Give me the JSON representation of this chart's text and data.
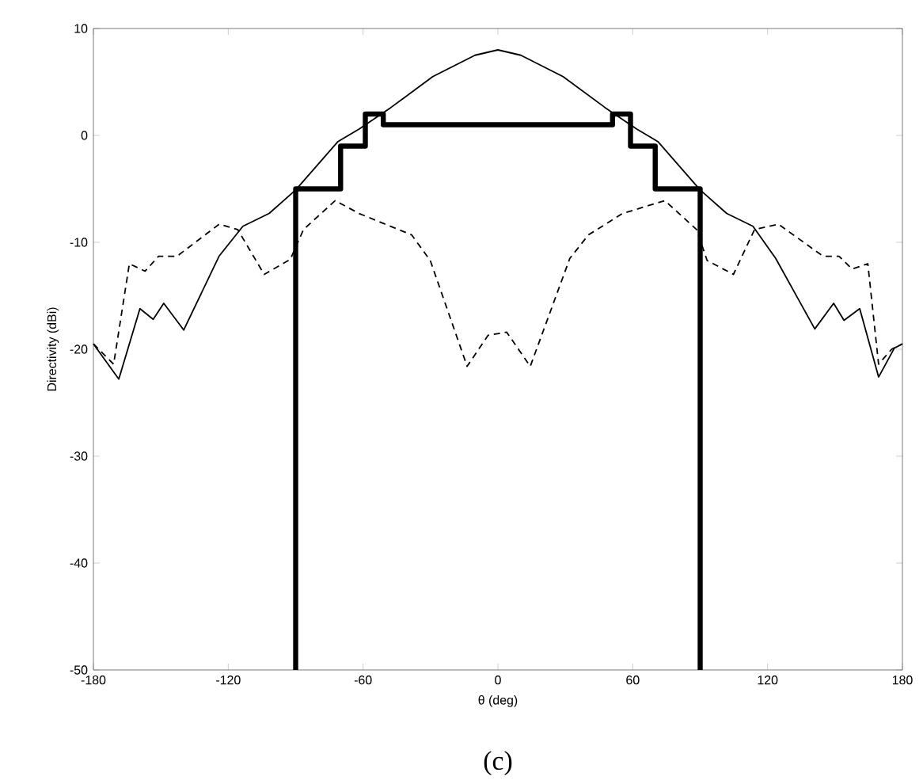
{
  "chart_data": {
    "type": "line",
    "xlabel": "θ (deg)",
    "ylabel": "Directivity (dBi)",
    "xlim": [
      -180,
      180
    ],
    "ylim": [
      -50,
      10
    ],
    "xticks": [
      -180,
      -120,
      -60,
      0,
      60,
      120,
      180
    ],
    "yticks": [
      -50,
      -40,
      -30,
      -20,
      -10,
      0,
      10
    ],
    "grid": false,
    "marker": "none",
    "series": [
      {
        "color": "#000000",
        "line_style": "solid",
        "x": [
          -180,
          -168.7,
          -159.3,
          -153.4,
          -148.7,
          -139.8,
          -124.1,
          -113.5,
          -101.8,
          -90,
          -71.3,
          -61.8,
          -47.7,
          -29,
          -10.2,
          0,
          10.2,
          29,
          47.7,
          61.8,
          71.3,
          90,
          101.8,
          113.5,
          123.6,
          141,
          149.4,
          154,
          161,
          169.4,
          176.4,
          180
        ],
        "values": [
          -19.5,
          -22.8,
          -16.2,
          -17.2,
          -15.7,
          -18.2,
          -11.3,
          -8.5,
          -7.3,
          -5.1,
          -0.6,
          0.6,
          2.6,
          5.5,
          7.5,
          8,
          7.5,
          5.5,
          2.6,
          0.6,
          -0.6,
          -5.1,
          -7.3,
          -8.5,
          -11.5,
          -18.1,
          -15.7,
          -17.3,
          -16.2,
          -22.6,
          -19.9,
          -19.5
        ]
      },
      {
        "color": "#000000",
        "line_style": "dashed",
        "x": [
          -180,
          -171,
          -164,
          -157,
          -151,
          -142.8,
          -124,
          -115.8,
          -104,
          -92.4,
          -86.5,
          -72.4,
          -61.8,
          -38.4,
          -30.1,
          -13.7,
          -4.4,
          3.9,
          14.4,
          32,
          40.3,
          55.5,
          74.3,
          88.4,
          93.1,
          104.8,
          114.2,
          124.8,
          144.7,
          151.8,
          157.6,
          164.6,
          169.4,
          175.2,
          180
        ],
        "values": [
          -19.5,
          -21.4,
          -12,
          -12.7,
          -11.3,
          -11.3,
          -8.3,
          -8.8,
          -13,
          -11.6,
          -8.8,
          -6.1,
          -7.3,
          -9.3,
          -11.7,
          -21.6,
          -18.7,
          -18.4,
          -21.6,
          -11.5,
          -9.3,
          -7.3,
          -6.1,
          -8.8,
          -11.7,
          -13,
          -8.8,
          -8.3,
          -11.3,
          -11.3,
          -12.5,
          -12,
          -21.4,
          -20,
          -19.5
        ]
      },
      {
        "type": "step",
        "color": "#000000",
        "line_style": "solid",
        "x": [
          -90,
          -90,
          -70,
          -59,
          -51,
          51,
          59,
          70,
          90,
          90
        ],
        "values": [
          -50,
          -5,
          -1,
          2,
          1,
          2,
          -1,
          -5,
          -5,
          -50
        ]
      }
    ],
    "annotations": [
      "(c)"
    ]
  }
}
